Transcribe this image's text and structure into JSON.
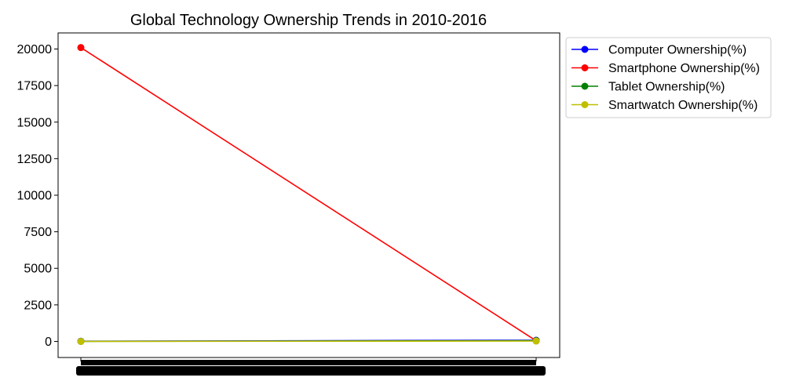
{
  "chart_data": {
    "type": "line",
    "title": "Global Technology Ownership Trends in 2010-2016",
    "xlabel": "",
    "ylabel": "",
    "ylim": [
      -1100,
      21100
    ],
    "y_ticks": [
      0,
      2500,
      5000,
      7500,
      10000,
      12500,
      15000,
      17500,
      20000
    ],
    "x_ticks_legible": false,
    "x_first": 0,
    "x_last": 1,
    "legend_position": "outside-upper-right",
    "grid": false,
    "series": [
      {
        "name": "Computer Ownership(%)",
        "color": "#0000ff",
        "points": [
          [
            0,
            15
          ],
          [
            1,
            80
          ]
        ]
      },
      {
        "name": "Smartphone Ownership(%)",
        "color": "#ff0000",
        "points": [
          [
            0,
            20100
          ],
          [
            1,
            45
          ]
        ]
      },
      {
        "name": "Tablet Ownership(%)",
        "color": "#008000",
        "points": [
          [
            0,
            5
          ],
          [
            1,
            50
          ]
        ]
      },
      {
        "name": "Smartwatch Ownership(%)",
        "color": "#bfbf00",
        "points": [
          [
            0,
            1
          ],
          [
            1,
            25
          ]
        ]
      }
    ]
  }
}
